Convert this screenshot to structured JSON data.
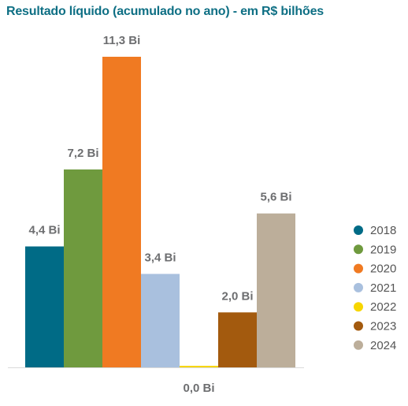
{
  "chart_data": {
    "type": "bar",
    "title": "Resultado líquido (acumulado no ano) - em R$ bilhões",
    "xlabel": "",
    "ylabel": "",
    "ylim": [
      0,
      11.3
    ],
    "grid": false,
    "legend_position": "right",
    "categories": [
      "2018",
      "2019",
      "2020",
      "2021",
      "2022",
      "2023",
      "2024"
    ],
    "values": [
      4.4,
      7.2,
      11.3,
      3.4,
      0.0,
      2.0,
      5.6
    ],
    "data_labels": [
      "4,4 Bi",
      "7,2 Bi",
      "11,3 Bi",
      "3,4 Bi",
      "0,0 Bi",
      "2,0 Bi",
      "5,6 Bi"
    ],
    "colors": [
      "#006b86",
      "#6f9a3e",
      "#f07a22",
      "#a9c0de",
      "#f7d600",
      "#a35a0e",
      "#bcae9a"
    ]
  }
}
